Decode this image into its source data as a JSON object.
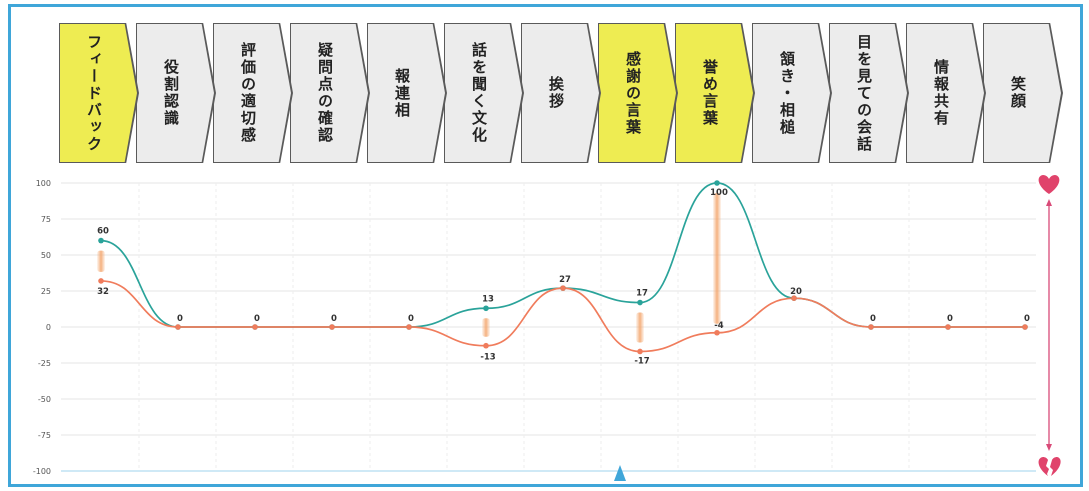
{
  "steps": [
    {
      "label": "フィードバック",
      "highlight": true
    },
    {
      "label": "役割認識",
      "highlight": false
    },
    {
      "label": "評価の適切感",
      "highlight": false
    },
    {
      "label": "疑問点の確認",
      "highlight": false
    },
    {
      "label": "報連相",
      "highlight": false
    },
    {
      "label": "話を聞く文化",
      "highlight": false
    },
    {
      "label": "挨拶",
      "highlight": false
    },
    {
      "label": "感謝の言葉",
      "highlight": true
    },
    {
      "label": "誉め言葉",
      "highlight": true
    },
    {
      "label": "頷き・相槌",
      "highlight": false
    },
    {
      "label": "目を見ての会話",
      "highlight": false
    },
    {
      "label": "情報共有",
      "highlight": false
    },
    {
      "label": "笑顔",
      "highlight": false
    }
  ],
  "chart_data": {
    "type": "line",
    "title": "",
    "xlabel": "",
    "ylabel": "",
    "ylim": [
      -100,
      100
    ],
    "yticks": [
      100,
      75,
      50,
      25,
      0,
      -25,
      -50,
      -75,
      -100
    ],
    "x": [
      1,
      2,
      3,
      4,
      5,
      6,
      7,
      8,
      9,
      10,
      11,
      12,
      13
    ],
    "grid": true,
    "series": [
      {
        "color": "#2aa39a",
        "values": [
          60,
          0,
          0,
          0,
          0,
          13,
          27,
          17,
          100,
          20,
          0,
          0,
          0
        ]
      },
      {
        "color": "#f07c5c",
        "values": [
          32,
          0,
          0,
          0,
          0,
          -13,
          27,
          -17,
          -4,
          20,
          0,
          0,
          0
        ]
      }
    ],
    "data_labels": [
      "60",
      "32",
      "0",
      "0",
      "0",
      "0",
      "13",
      "-13",
      "27",
      "17",
      "-17",
      "100",
      "-4",
      "20",
      "0",
      "0",
      "0"
    ],
    "gap_markers": [
      1,
      6,
      8,
      9
    ]
  },
  "colors": {
    "highlight": "#eeec52",
    "step_bg": "#ececec",
    "frame": "#3fa6d9",
    "heart": "#e0436b",
    "gap_bar": "#f3a46a"
  },
  "icons": {
    "top": "heart-icon",
    "bottom": "broken-heart-icon"
  }
}
